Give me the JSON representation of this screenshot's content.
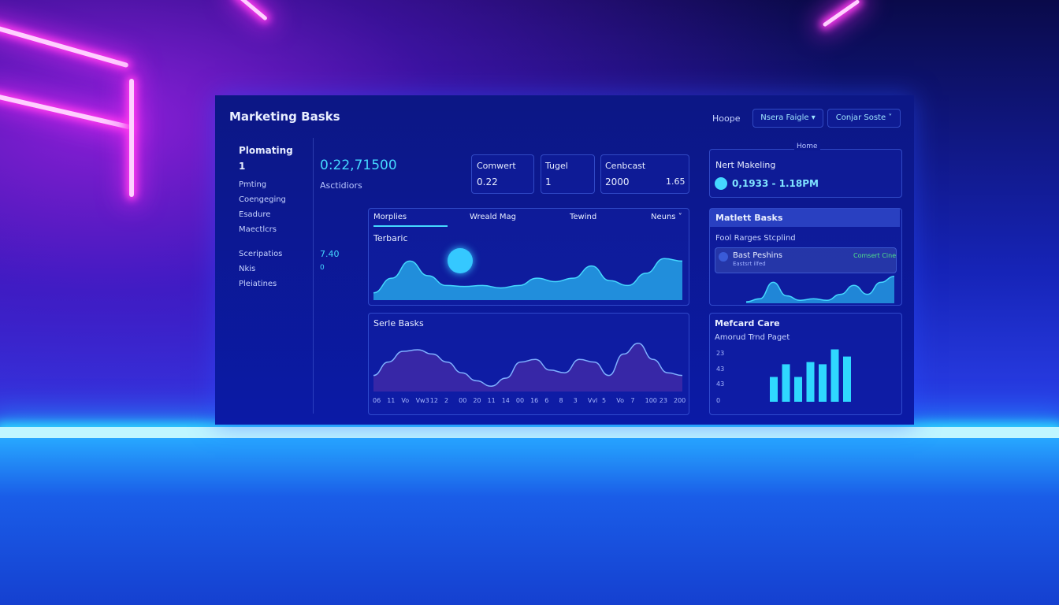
{
  "header": {
    "title": "Marketing Basks",
    "nav": "Hoope",
    "dropdowns": [
      "Nsera Faigle ▾",
      "Conjar Soste ˅"
    ]
  },
  "sidebar": {
    "heading": "Plomating",
    "value": "1",
    "items": [
      "Pmting",
      "Coengeging",
      "Esadure",
      "Maectlcrs"
    ],
    "items2": [
      "Sceripatios",
      "Nkis",
      "Pleiatines"
    ]
  },
  "kpi": {
    "value": "0:22,71500",
    "label": "Asctidiors",
    "side_value": "7.40",
    "side_sub": "0"
  },
  "stats": [
    {
      "label": "Comwert",
      "value": "0.22"
    },
    {
      "label": "Tugel",
      "value": "1"
    },
    {
      "label": "Cenbcast",
      "value": "2000",
      "extra": "1.65"
    }
  ],
  "next": {
    "caption": "Home",
    "title": "Nert Makeling",
    "value": "0,1933 - 1.18PM"
  },
  "tabs": [
    "Morplies",
    "Wreald Mag",
    "Tewind",
    "Neuns ˅"
  ],
  "chart1": {
    "title": "Terbaric",
    "values": [
      15,
      45,
      80,
      50,
      30,
      28,
      30,
      25,
      30,
      45,
      38,
      45,
      70,
      40,
      30,
      55,
      85,
      80
    ]
  },
  "chart2": {
    "title": "Serle Basks",
    "x_labels": [
      "06",
      "11",
      "Vo",
      "Vw3",
      "12",
      "2",
      "00",
      "20",
      "11",
      "14",
      "00",
      "16",
      "6",
      "8",
      "3",
      "Vvl",
      "5",
      "Vo",
      "7",
      "100",
      "23",
      "200"
    ],
    "values": [
      30,
      55,
      75,
      78,
      70,
      55,
      35,
      20,
      10,
      25,
      55,
      60,
      40,
      35,
      60,
      55,
      30,
      70,
      90,
      60,
      35,
      30
    ]
  },
  "panel1": {
    "title": "Matlett Basks",
    "subtitle": "Fool Rarges Stcplind",
    "item": "Bast Peshins",
    "item_sub": "Eastsrt ilfed",
    "status": "Comsert Cine",
    "values": [
      5,
      15,
      70,
      25,
      10,
      15,
      10,
      30,
      60,
      30,
      70,
      90
    ]
  },
  "panel2": {
    "title": "Mefcard Care",
    "subtitle": "Amorud Trnd Paget",
    "ylabels": [
      "23",
      "43",
      "43",
      "0"
    ],
    "values": [
      45,
      68,
      45,
      72,
      68,
      95,
      82
    ]
  }
}
